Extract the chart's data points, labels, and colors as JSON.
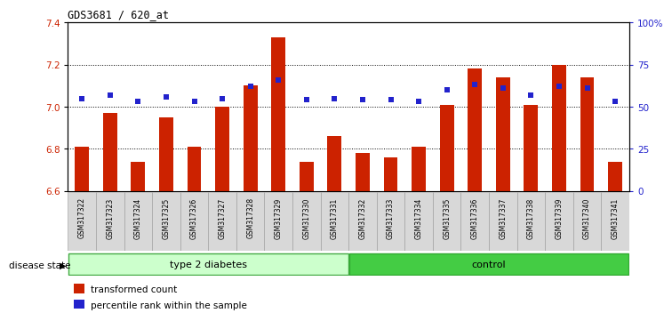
{
  "title": "GDS3681 / 620_at",
  "samples": [
    "GSM317322",
    "GSM317323",
    "GSM317324",
    "GSM317325",
    "GSM317326",
    "GSM317327",
    "GSM317328",
    "GSM317329",
    "GSM317330",
    "GSM317331",
    "GSM317332",
    "GSM317333",
    "GSM317334",
    "GSM317335",
    "GSM317336",
    "GSM317337",
    "GSM317338",
    "GSM317339",
    "GSM317340",
    "GSM317341"
  ],
  "transformed_counts": [
    6.81,
    6.97,
    6.74,
    6.95,
    6.81,
    7.0,
    7.1,
    7.33,
    6.74,
    6.86,
    6.78,
    6.76,
    6.81,
    7.01,
    7.18,
    7.14,
    7.01,
    7.2,
    7.14,
    6.74
  ],
  "percentile_ranks": [
    55,
    57,
    53,
    56,
    53,
    55,
    62,
    66,
    54,
    55,
    54,
    54,
    53,
    60,
    63,
    61,
    57,
    62,
    61,
    53
  ],
  "ylim_left": [
    6.6,
    7.4
  ],
  "ylim_right": [
    0,
    100
  ],
  "yticks_left": [
    6.6,
    6.8,
    7.0,
    7.2,
    7.4
  ],
  "yticks_right": [
    0,
    25,
    50,
    75,
    100
  ],
  "ytick_labels_right": [
    "0",
    "25",
    "50",
    "75",
    "100%"
  ],
  "bar_color": "#CC2200",
  "dot_color": "#2222CC",
  "group1_bg": "#CCFFCC",
  "group1_border": "#44AA44",
  "group2_bg": "#44CC44",
  "group2_border": "#33AA33",
  "tick_bg": "#D0D0D0",
  "bar_width": 0.5,
  "bar_bottom": 6.6,
  "grid_yticks": [
    6.8,
    7.0,
    7.2
  ]
}
